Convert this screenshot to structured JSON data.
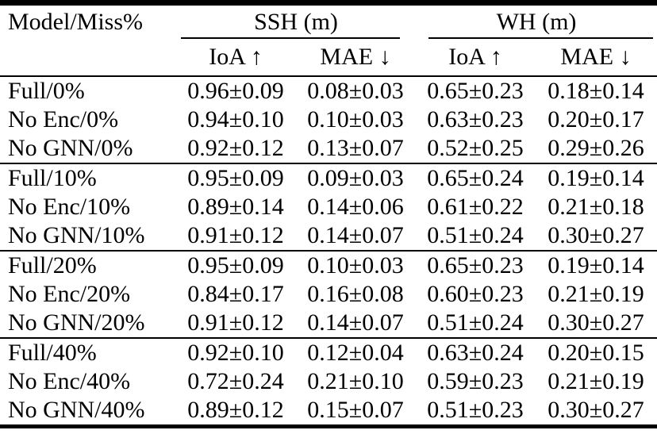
{
  "table": {
    "col1_header": "Model/Miss%",
    "group_headers": [
      "SSH (m)",
      "WH (m)"
    ],
    "subheaders": [
      "IoA ↑",
      "MAE ↓",
      "IoA ↑",
      "MAE ↓"
    ],
    "sections": [
      {
        "miss_pct": "0%",
        "rows": [
          {
            "model": "Full/0%",
            "values": [
              "0.96±0.09",
              "0.08±0.03",
              "0.65±0.23",
              "0.18±0.14"
            ]
          },
          {
            "model": "No Enc/0%",
            "values": [
              "0.94±0.10",
              "0.10±0.03",
              "0.63±0.23",
              "0.20±0.17"
            ]
          },
          {
            "model": "No GNN/0%",
            "values": [
              "0.92±0.12",
              "0.13±0.07",
              "0.52±0.25",
              "0.29±0.26"
            ]
          }
        ]
      },
      {
        "miss_pct": "10%",
        "rows": [
          {
            "model": "Full/10%",
            "values": [
              "0.95±0.09",
              "0.09±0.03",
              "0.65±0.24",
              "0.19±0.14"
            ]
          },
          {
            "model": "No Enc/10%",
            "values": [
              "0.89±0.14",
              "0.14±0.06",
              "0.61±0.22",
              "0.21±0.18"
            ]
          },
          {
            "model": "No GNN/10%",
            "values": [
              "0.91±0.12",
              "0.14±0.07",
              "0.51±0.24",
              "0.30±0.27"
            ]
          }
        ]
      },
      {
        "miss_pct": "20%",
        "rows": [
          {
            "model": "Full/20%",
            "values": [
              "0.95±0.09",
              "0.10±0.03",
              "0.65±0.23",
              "0.19±0.14"
            ]
          },
          {
            "model": "No Enc/20%",
            "values": [
              "0.84±0.17",
              "0.16±0.08",
              "0.60±0.23",
              "0.21±0.19"
            ]
          },
          {
            "model": "No GNN/20%",
            "values": [
              "0.91±0.12",
              "0.14±0.07",
              "0.51±0.24",
              "0.30±0.27"
            ]
          }
        ]
      },
      {
        "miss_pct": "40%",
        "rows": [
          {
            "model": "Full/40%",
            "values": [
              "0.92±0.10",
              "0.12±0.04",
              "0.63±0.24",
              "0.20±0.15"
            ]
          },
          {
            "model": "No Enc/40%",
            "values": [
              "0.72±0.24",
              "0.21±0.10",
              "0.59±0.23",
              "0.21±0.19"
            ]
          },
          {
            "model": "No GNN/40%",
            "values": [
              "0.89±0.12",
              "0.15±0.07",
              "0.51±0.23",
              "0.30±0.27"
            ]
          }
        ]
      }
    ]
  },
  "chart_data": {
    "type": "table",
    "columns": [
      "Model/Miss%",
      "SSH (m) IoA ↑",
      "SSH (m) MAE ↓",
      "WH (m) IoA ↑",
      "WH (m) MAE ↓"
    ],
    "rows": [
      [
        "Full/0%",
        "0.96±0.09",
        "0.08±0.03",
        "0.65±0.23",
        "0.18±0.14"
      ],
      [
        "No Enc/0%",
        "0.94±0.10",
        "0.10±0.03",
        "0.63±0.23",
        "0.20±0.17"
      ],
      [
        "No GNN/0%",
        "0.92±0.12",
        "0.13±0.07",
        "0.52±0.25",
        "0.29±0.26"
      ],
      [
        "Full/10%",
        "0.95±0.09",
        "0.09±0.03",
        "0.65±0.24",
        "0.19±0.14"
      ],
      [
        "No Enc/10%",
        "0.89±0.14",
        "0.14±0.06",
        "0.61±0.22",
        "0.21±0.18"
      ],
      [
        "No GNN/10%",
        "0.91±0.12",
        "0.14±0.07",
        "0.51±0.24",
        "0.30±0.27"
      ],
      [
        "Full/20%",
        "0.95±0.09",
        "0.10±0.03",
        "0.65±0.23",
        "0.19±0.14"
      ],
      [
        "No Enc/20%",
        "0.84±0.17",
        "0.16±0.08",
        "0.60±0.23",
        "0.21±0.19"
      ],
      [
        "No GNN/20%",
        "0.91±0.12",
        "0.14±0.07",
        "0.51±0.24",
        "0.30±0.27"
      ],
      [
        "Full/40%",
        "0.92±0.10",
        "0.12±0.04",
        "0.63±0.24",
        "0.20±0.15"
      ],
      [
        "No Enc/40%",
        "0.72±0.24",
        "0.21±0.10",
        "0.59±0.23",
        "0.21±0.19"
      ],
      [
        "No GNN/40%",
        "0.89±0.12",
        "0.15±0.07",
        "0.51±0.23",
        "0.30±0.27"
      ]
    ]
  }
}
